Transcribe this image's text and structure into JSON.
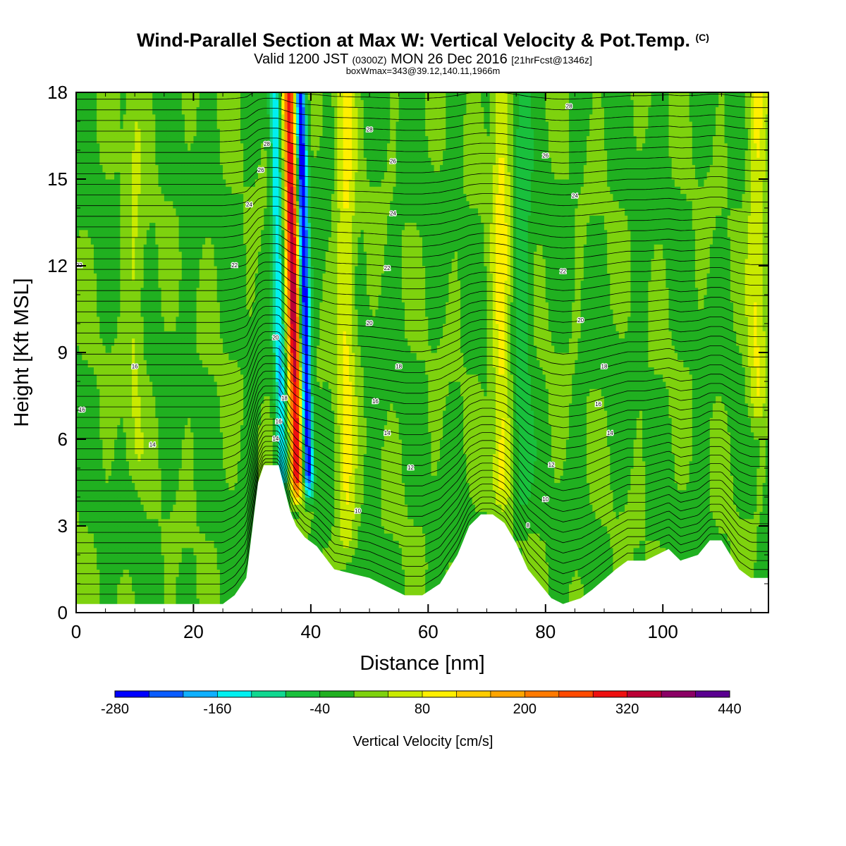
{
  "title": {
    "main": "Wind-Parallel Section at Max W: Vertical Velocity & Pot.Temp.",
    "copyright": "(C)",
    "valid_prefix": "Valid 1200 JST",
    "valid_utc": "(0300Z)",
    "valid_date": "MON 26 Dec 2016",
    "forecast": "[21hrFcst@1346z]",
    "box_info": "boxWmax=343@39.12,140.11,1966m"
  },
  "chart_data": {
    "type": "heatmap",
    "xlabel": "Distance [nm]",
    "ylabel": "Height [Kft MSL]",
    "xlim": [
      0,
      118
    ],
    "ylim": [
      0,
      18
    ],
    "x_ticks": [
      "0",
      "20",
      "40",
      "60",
      "80",
      "100"
    ],
    "y_ticks": [
      "0",
      "3",
      "6",
      "9",
      "12",
      "15",
      "18"
    ],
    "colorbar": {
      "label": "Vertical Velocity [cm/s]",
      "range": [
        -280,
        440
      ],
      "step": 40,
      "tick_labels": [
        "-280",
        "-160",
        "-40",
        "80",
        "200",
        "320",
        "440"
      ],
      "colors": [
        "#0000ff",
        "#0a5cff",
        "#0fb0ff",
        "#00f0f0",
        "#10d890",
        "#19c03c",
        "#20b020",
        "#7ed20e",
        "#c9ea00",
        "#ffef00",
        "#ffcc00",
        "#ffa500",
        "#ff7a00",
        "#ff4a00",
        "#ee1010",
        "#bb0035",
        "#8b0065",
        "#5a0090"
      ]
    },
    "terrain_kft": [
      [
        0,
        0.3
      ],
      [
        25,
        0.3
      ],
      [
        27,
        0.6
      ],
      [
        29,
        1.2
      ],
      [
        31,
        4.5
      ],
      [
        32,
        5.1
      ],
      [
        34.5,
        5.1
      ],
      [
        35.5,
        4.3
      ],
      [
        36.5,
        3.5
      ],
      [
        37.5,
        3.0
      ],
      [
        39,
        2.6
      ],
      [
        41,
        2.3
      ],
      [
        44,
        1.5
      ],
      [
        50,
        1.2
      ],
      [
        56,
        0.6
      ],
      [
        59,
        0.6
      ],
      [
        62,
        1.0
      ],
      [
        65,
        2.0
      ],
      [
        67,
        3.0
      ],
      [
        69,
        3.4
      ],
      [
        71,
        3.4
      ],
      [
        73,
        3.1
      ],
      [
        75,
        2.4
      ],
      [
        77,
        1.5
      ],
      [
        79,
        1.0
      ],
      [
        81,
        0.5
      ],
      [
        83,
        0.3
      ],
      [
        86,
        0.5
      ],
      [
        88,
        0.8
      ],
      [
        92,
        1.5
      ],
      [
        94,
        1.8
      ],
      [
        97,
        1.8
      ],
      [
        99,
        2.0
      ],
      [
        101,
        2.2
      ],
      [
        103,
        1.8
      ],
      [
        106,
        2.0
      ],
      [
        108,
        2.5
      ],
      [
        110,
        2.5
      ],
      [
        113,
        1.5
      ],
      [
        115,
        1.2
      ],
      [
        118,
        1.2
      ]
    ],
    "updraft_core": {
      "x": 37.5,
      "z_bottom": 3.5,
      "z_top": 18,
      "tilt_nm_per_kft": 0.1,
      "max_cm_s": 343,
      "min_cm_s": -280
    },
    "bands": [
      {
        "x": 46,
        "z_bottom": 1.3,
        "z_top": 18,
        "peak_cm_s": 90
      },
      {
        "x": 72.5,
        "z_bottom": 3.0,
        "z_top": 18,
        "peak_cm_s": 100
      },
      {
        "x": 76,
        "z_bottom": 2.5,
        "z_top": 18,
        "peak_cm_s": -60
      },
      {
        "x": 116,
        "z_bottom": 6,
        "z_top": 18,
        "peak_cm_s": 85
      },
      {
        "x": 10,
        "z_bottom": 4,
        "z_top": 18,
        "peak_cm_s": 45
      }
    ],
    "theta_contour_spacing_c": 2,
    "theta_labels": [
      {
        "value": "28",
        "x": 32.5,
        "z": 16.2
      },
      {
        "value": "26",
        "x": 31.5,
        "z": 15.3
      },
      {
        "value": "24",
        "x": 29.5,
        "z": 14.1
      },
      {
        "value": "22",
        "x": 27,
        "z": 12.0
      },
      {
        "value": "22",
        "x": 0.5,
        "z": 12.0
      },
      {
        "value": "20",
        "x": 34,
        "z": 9.5
      },
      {
        "value": "18",
        "x": 35.5,
        "z": 7.4
      },
      {
        "value": "16",
        "x": 34.5,
        "z": 6.6
      },
      {
        "value": "14",
        "x": 34,
        "z": 6.0
      },
      {
        "value": "16",
        "x": 10,
        "z": 8.5
      },
      {
        "value": "16",
        "x": 1,
        "z": 7.0
      },
      {
        "value": "14",
        "x": 13,
        "z": 5.8
      },
      {
        "value": "28",
        "x": 50,
        "z": 16.7
      },
      {
        "value": "26",
        "x": 54,
        "z": 15.6
      },
      {
        "value": "24",
        "x": 54,
        "z": 13.8
      },
      {
        "value": "22",
        "x": 53,
        "z": 11.9
      },
      {
        "value": "20",
        "x": 50,
        "z": 10.0
      },
      {
        "value": "18",
        "x": 55,
        "z": 8.5
      },
      {
        "value": "16",
        "x": 51,
        "z": 7.3
      },
      {
        "value": "14",
        "x": 53,
        "z": 6.2
      },
      {
        "value": "12",
        "x": 57,
        "z": 5.0
      },
      {
        "value": "10",
        "x": 48,
        "z": 3.5
      },
      {
        "value": "28",
        "x": 84,
        "z": 17.5
      },
      {
        "value": "26",
        "x": 80,
        "z": 15.8
      },
      {
        "value": "24",
        "x": 85,
        "z": 14.4
      },
      {
        "value": "22",
        "x": 83,
        "z": 11.8
      },
      {
        "value": "20",
        "x": 86,
        "z": 10.1
      },
      {
        "value": "18",
        "x": 90,
        "z": 8.5
      },
      {
        "value": "16",
        "x": 89,
        "z": 7.2
      },
      {
        "value": "14",
        "x": 91,
        "z": 6.2
      },
      {
        "value": "12",
        "x": 81,
        "z": 5.1
      },
      {
        "value": "10",
        "x": 80,
        "z": 3.9
      },
      {
        "value": "8",
        "x": 77,
        "z": 3.0
      }
    ]
  }
}
